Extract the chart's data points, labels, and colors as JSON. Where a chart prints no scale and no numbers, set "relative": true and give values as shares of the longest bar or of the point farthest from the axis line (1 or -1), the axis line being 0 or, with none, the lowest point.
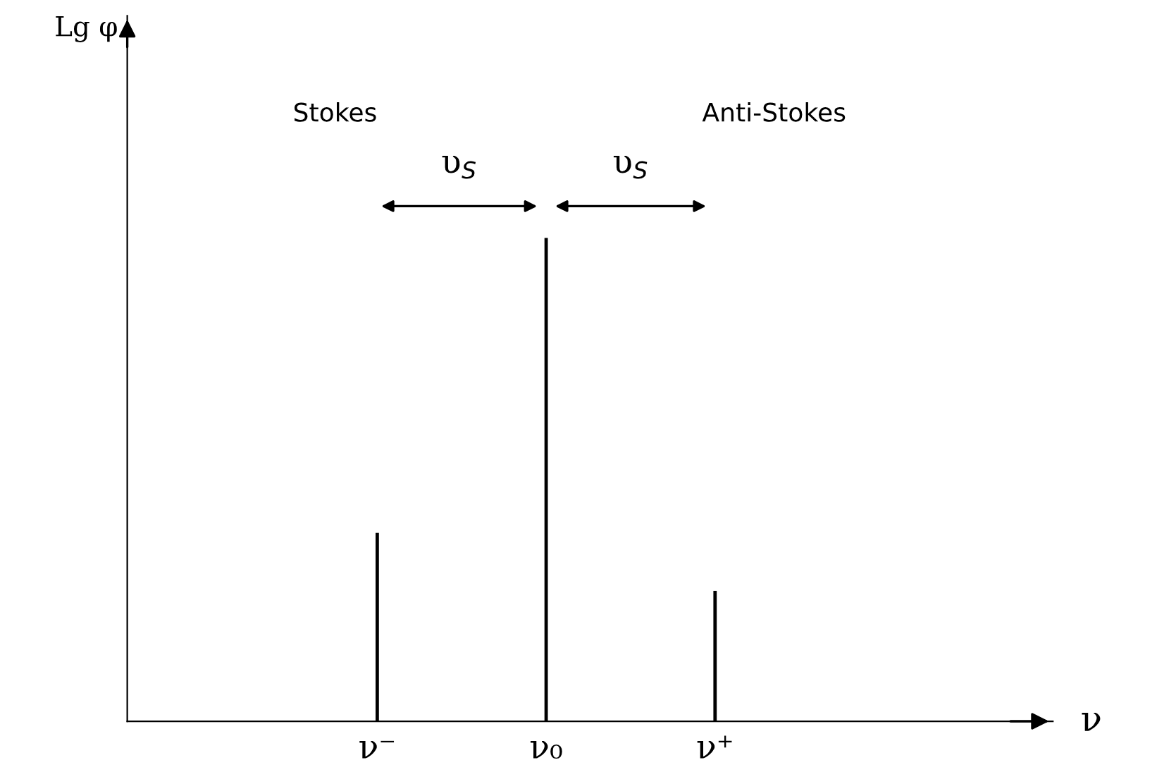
{
  "chart_data": {
    "type": "bar",
    "relative": true,
    "categories": [
      "ν⁻",
      "ν₀",
      "ν⁺"
    ],
    "values": [
      0.39,
      1,
      0.27
    ],
    "color": "#000000",
    "grid": false,
    "annotations": [
      "Stokes",
      "Anti-Stokes",
      "υ$_{S}$",
      "υ$_{S}$",
      "Lg φ",
      "ν"
    ]
  }
}
